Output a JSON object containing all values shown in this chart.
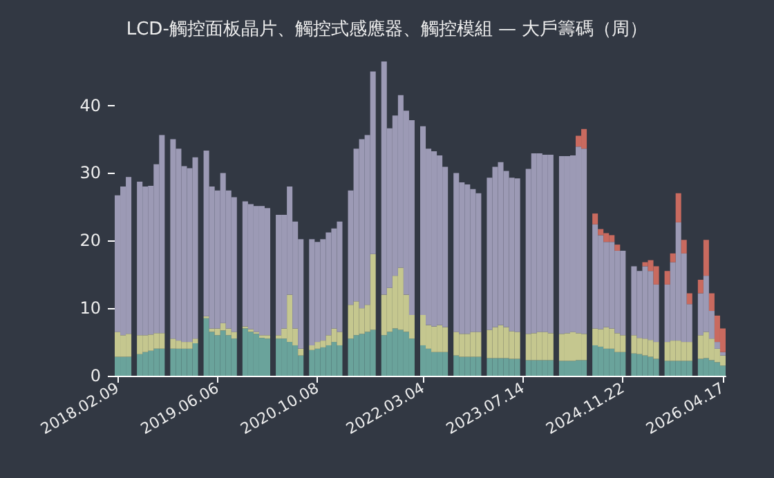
{
  "chart_data": {
    "type": "bar",
    "title": "LCD-觸控面板晶片、觸控式感應器、觸控模組 — 大戶籌碼（周）",
    "stacked": true,
    "categories": [
      "2018.02.09",
      null,
      null,
      null,
      null,
      null,
      null,
      null,
      null,
      null,
      null,
      null,
      null,
      null,
      null,
      null,
      null,
      null,
      "2019.06.06",
      null,
      null,
      null,
      null,
      null,
      null,
      null,
      null,
      null,
      null,
      null,
      null,
      null,
      null,
      null,
      null,
      null,
      "2020.10.08",
      null,
      null,
      null,
      null,
      null,
      null,
      null,
      null,
      null,
      null,
      null,
      null,
      null,
      null,
      null,
      null,
      null,
      null,
      "2022.03.04",
      null,
      null,
      null,
      null,
      null,
      null,
      null,
      null,
      null,
      null,
      null,
      null,
      null,
      null,
      null,
      null,
      null,
      "2023.07.14",
      null,
      null,
      null,
      null,
      null,
      null,
      null,
      null,
      null,
      null,
      null,
      null,
      null,
      null,
      null,
      null,
      null,
      "2024.11.22",
      null,
      null,
      null,
      null,
      null,
      null,
      null,
      null,
      null,
      null,
      null,
      null,
      null,
      null,
      null,
      null,
      null,
      "2026.04.17"
    ],
    "series": [
      {
        "color": "#6aa39b",
        "values": [
          2.8,
          2.8,
          2.8,
          null,
          3.2,
          3.5,
          3.7,
          4.0,
          4.0,
          null,
          4.0,
          4.0,
          4.0,
          4.0,
          4.8,
          null,
          8.5,
          6.5,
          6.0,
          6.7,
          6.0,
          5.5,
          null,
          7.0,
          6.5,
          6.2,
          5.6,
          5.5,
          null,
          5.5,
          5.5,
          5.0,
          4.5,
          3.0,
          null,
          3.8,
          4.0,
          4.2,
          4.5,
          5.0,
          4.5,
          null,
          5.5,
          6.0,
          6.2,
          6.5,
          6.8,
          null,
          6.0,
          6.5,
          7.0,
          6.8,
          6.5,
          5.5,
          null,
          4.5,
          4.0,
          3.5,
          3.5,
          3.5,
          null,
          3.0,
          2.8,
          2.8,
          2.8,
          2.8,
          null,
          2.6,
          2.6,
          2.6,
          2.6,
          2.5,
          2.5,
          null,
          2.3,
          2.3,
          2.3,
          2.3,
          2.3,
          null,
          2.2,
          2.2,
          2.2,
          2.3,
          2.3,
          null,
          4.5,
          4.3,
          4.0,
          4.0,
          3.5,
          3.5,
          null,
          3.3,
          3.2,
          3.0,
          2.8,
          2.5,
          null,
          2.2,
          2.2,
          2.2,
          2.2,
          2.2,
          null,
          2.5,
          2.6,
          2.3,
          2.0,
          1.5
        ]
      },
      {
        "color": "#c5c78f",
        "values": [
          3.7,
          3.2,
          3.4,
          null,
          2.8,
          2.5,
          2.4,
          2.3,
          2.3,
          null,
          1.5,
          1.2,
          1.0,
          1.0,
          0.7,
          null,
          0.3,
          0.5,
          1.0,
          1.1,
          1.0,
          1.0,
          null,
          0.3,
          0.4,
          0.3,
          0.4,
          0.5,
          null,
          0.5,
          1.5,
          7.0,
          2.5,
          1.0,
          null,
          0.7,
          1.0,
          1.0,
          1.5,
          2.0,
          2.0,
          null,
          5.0,
          5.0,
          3.8,
          4.0,
          11.2,
          null,
          6.0,
          6.5,
          7.8,
          9.2,
          5.5,
          3.5,
          null,
          4.5,
          3.5,
          3.8,
          4.0,
          3.7,
          null,
          3.5,
          3.4,
          3.4,
          3.7,
          3.7,
          null,
          4.2,
          4.6,
          4.9,
          4.6,
          4.1,
          4.0,
          null,
          3.9,
          4.0,
          4.2,
          4.2,
          4.0,
          null,
          4.0,
          4.1,
          4.3,
          4.0,
          3.9,
          null,
          2.5,
          2.6,
          3.2,
          3.0,
          2.8,
          2.5,
          null,
          2.7,
          2.4,
          2.5,
          2.5,
          2.5,
          null,
          2.8,
          3.0,
          3.0,
          2.8,
          2.8,
          null,
          3.5,
          3.9,
          3.2,
          2.0,
          1.5
        ]
      },
      {
        "color": "#9c9ab5",
        "values": [
          20.2,
          22.0,
          23.2,
          null,
          22.7,
          22.0,
          22.0,
          25.0,
          29.3,
          null,
          29.5,
          28.4,
          26.0,
          25.7,
          26.8,
          null,
          24.5,
          21.0,
          20.4,
          22.2,
          20.4,
          19.9,
          null,
          18.5,
          18.5,
          18.6,
          19.1,
          18.8,
          null,
          17.8,
          16.8,
          16.0,
          15.8,
          16.2,
          null,
          15.7,
          14.8,
          15.0,
          15.2,
          14.8,
          16.3,
          null,
          16.9,
          22.6,
          25.0,
          25.1,
          27.0,
          null,
          34.5,
          23.6,
          23.7,
          25.5,
          27.2,
          28.8,
          null,
          27.9,
          26.1,
          25.9,
          25.1,
          23.7,
          null,
          23.5,
          22.4,
          22.1,
          21.1,
          20.5,
          null,
          22.5,
          23.7,
          24.1,
          23.1,
          22.7,
          22.7,
          null,
          24.4,
          26.6,
          26.4,
          26.2,
          26.4,
          null,
          26.3,
          26.2,
          26.1,
          27.6,
          27.4,
          null,
          15.4,
          13.9,
          12.6,
          12.8,
          12.2,
          12.5,
          null,
          10.2,
          9.9,
          10.7,
          10.2,
          8.5,
          null,
          8.5,
          11.6,
          17.5,
          13.1,
          5.6,
          null,
          6.2,
          8.3,
          4.1,
          1.0,
          0.5
        ]
      },
      {
        "color": "#c96a5f",
        "values": [
          0,
          0,
          0,
          null,
          0,
          0,
          0,
          0,
          0,
          null,
          0,
          0,
          0,
          0,
          0,
          null,
          0,
          0,
          0,
          0,
          0,
          0,
          null,
          0,
          0,
          0,
          0,
          0,
          null,
          0,
          0,
          0,
          0,
          0,
          null,
          0,
          0,
          0,
          0,
          0,
          0,
          null,
          0,
          0,
          0,
          0,
          0,
          null,
          0,
          0,
          0,
          0,
          0,
          0,
          null,
          0,
          0,
          0,
          0,
          0,
          null,
          0,
          0,
          0,
          0,
          0,
          null,
          0,
          0,
          0,
          0,
          0,
          0,
          null,
          0,
          0,
          0,
          0,
          0,
          null,
          0,
          0,
          0,
          1.6,
          2.9,
          null,
          1.6,
          0.9,
          1.3,
          1.0,
          0.9,
          0,
          null,
          0,
          0,
          0.6,
          1.6,
          2.7,
          null,
          2.0,
          1.3,
          4.3,
          2.0,
          1.6,
          null,
          2.0,
          5.3,
          2.6,
          3.9,
          3.5
        ]
      }
    ],
    "ylim": [
      0,
      47
    ],
    "yticks": [
      0,
      10,
      20,
      30,
      40
    ]
  }
}
